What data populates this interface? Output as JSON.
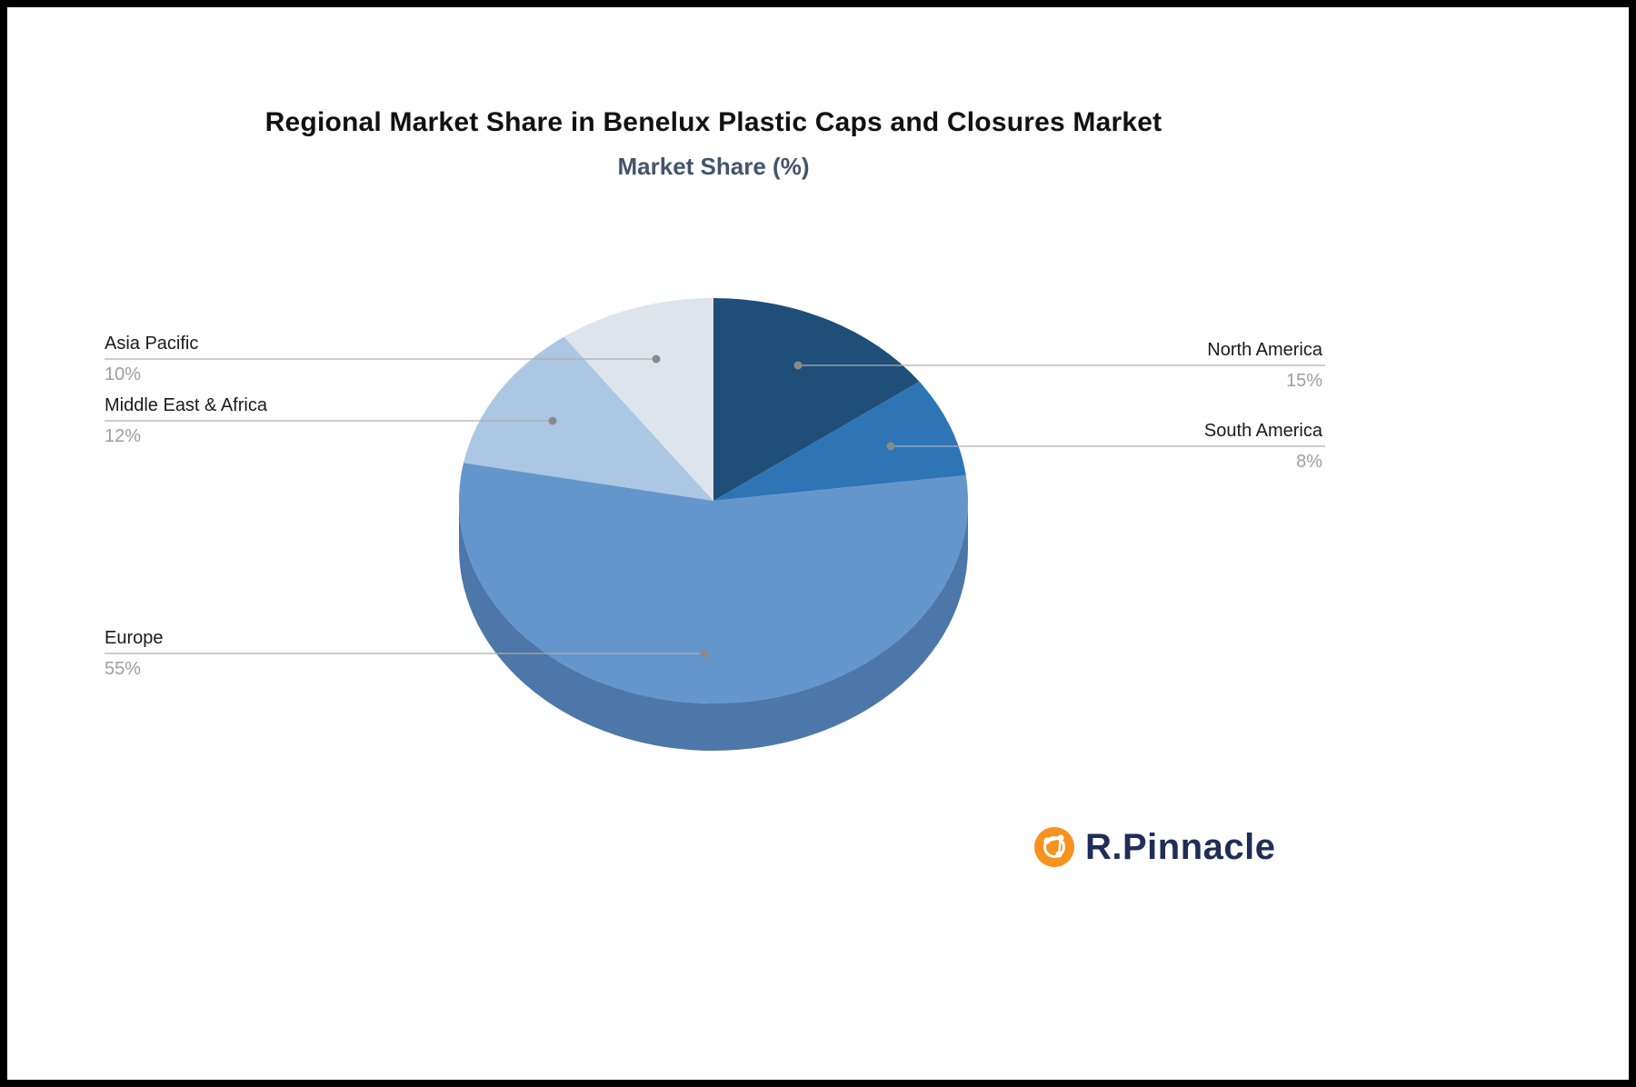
{
  "chart_data": {
    "type": "pie",
    "title": "Regional Market Share in Benelux Plastic Caps and Closures Market",
    "subtitle": "Market Share (%)",
    "unit": "%",
    "start_angle_deg": 0,
    "direction": "clockwise",
    "style": "3d-pie",
    "depth_color": "#4d77a8",
    "slices": [
      {
        "label": "North America",
        "value": 15,
        "display": "15%",
        "color": "#1f4e79"
      },
      {
        "label": "South America",
        "value": 8,
        "display": "8%",
        "color": "#2e75b6"
      },
      {
        "label": "Europe",
        "value": 55,
        "display": "55%",
        "color": "#6496cb"
      },
      {
        "label": "Middle East & Africa",
        "value": 12,
        "display": "12%",
        "color": "#abc7e3"
      },
      {
        "label": "Asia Pacific",
        "value": 10,
        "display": "10%",
        "color": "#dde4ec"
      }
    ]
  },
  "logo": {
    "text": "R.Pinnacle",
    "icon": "network-nodes-icon",
    "icon_color": "#f6921e",
    "text_color": "#1f2d58"
  }
}
